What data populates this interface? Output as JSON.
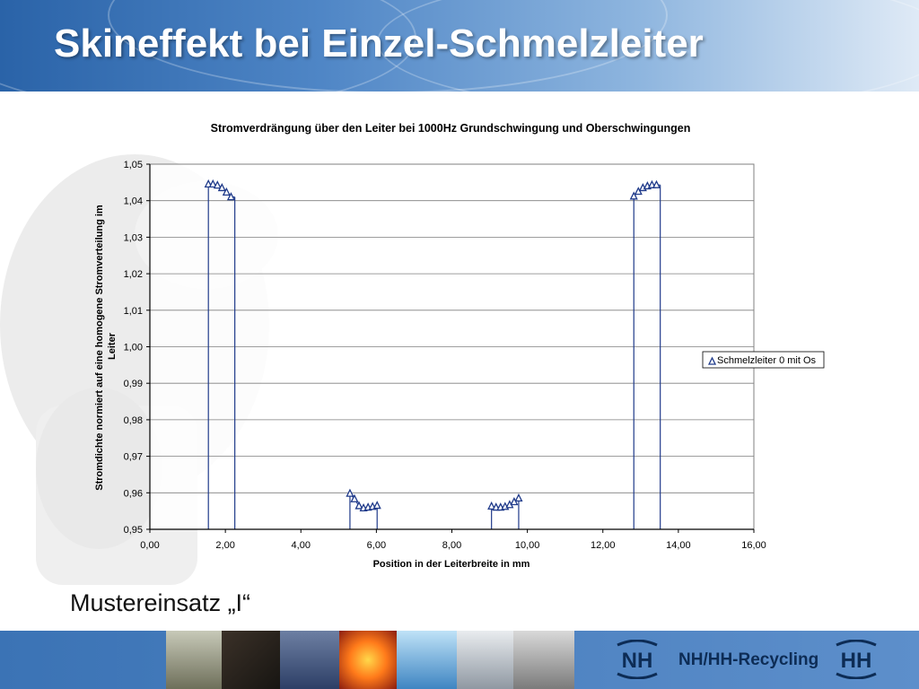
{
  "slide": {
    "title": "Skineffekt bei Einzel-Schmelzleiter",
    "subtitle": "Mustereinsatz „I“",
    "brand": "NH/HH-Recycling",
    "logo_left": "NH",
    "logo_right": "HH"
  },
  "colors": {
    "series": "#1f3a8a",
    "gridline": "#7f7f7f",
    "header": "#3a72b6",
    "footer": "#4a80c0"
  },
  "chart_data": {
    "type": "scatter",
    "title": "Stromverdrängung über den Leiter bei 1000Hz Grundschwingung und Oberschwingungen",
    "xlabel": "Position in der Leiterbreite in mm",
    "ylabel": "Stromdichte normiert auf eine homogene Stromverteilung im Leiter",
    "xlim": [
      0,
      16
    ],
    "ylim": [
      0.95,
      1.05
    ],
    "x_ticks": [
      "0,00",
      "2,00",
      "4,00",
      "6,00",
      "8,00",
      "10,00",
      "12,00",
      "14,00",
      "16,00"
    ],
    "y_ticks": [
      "0,95",
      "0,96",
      "0,97",
      "0,98",
      "0,99",
      "1,00",
      "1,01",
      "1,02",
      "1,03",
      "1,04",
      "1,05"
    ],
    "grid": "horizontal",
    "legend_position": "right",
    "series": [
      {
        "name": "Schmelzleiter 0 mit Os",
        "marker": "triangle",
        "segments": [
          {
            "x": [
              1.55,
              1.67,
              1.79,
              1.91,
              2.03,
              2.15
            ],
            "y": [
              1.0445,
              1.0445,
              1.0442,
              1.0435,
              1.0423,
              1.041
            ],
            "drop_lines_x": [
              1.55,
              2.25
            ]
          },
          {
            "x": [
              5.3,
              5.42,
              5.54,
              5.66,
              5.78,
              5.9,
              6.02
            ],
            "y": [
              0.9598,
              0.9583,
              0.9564,
              0.9558,
              0.956,
              0.9562,
              0.9565
            ],
            "drop_lines_x": [
              5.3,
              6.02
            ]
          },
          {
            "x": [
              9.05,
              9.17,
              9.29,
              9.41,
              9.53,
              9.65,
              9.77
            ],
            "y": [
              0.9563,
              0.956,
              0.956,
              0.9562,
              0.9567,
              0.9575,
              0.9585
            ],
            "drop_lines_x": [
              9.05,
              9.77
            ]
          },
          {
            "x": [
              12.82,
              12.94,
              13.06,
              13.18,
              13.3,
              13.42
            ],
            "y": [
              1.0412,
              1.0425,
              1.0435,
              1.044,
              1.0443,
              1.0443
            ],
            "drop_lines_x": [
              12.82,
              13.52
            ]
          }
        ]
      }
    ]
  }
}
